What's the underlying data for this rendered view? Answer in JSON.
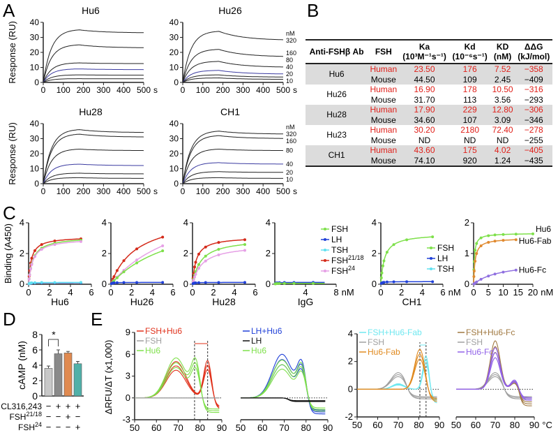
{
  "panel_labels": [
    "A",
    "B",
    "C",
    "D",
    "E"
  ],
  "chart_data": [
    {
      "type": "line",
      "panel": "A",
      "title": "Hu6",
      "ylabel": "Response (RU)",
      "xlabel": "s",
      "xlim": [
        0,
        500
      ],
      "ylim": [
        0,
        40
      ],
      "xticks": [
        0,
        100,
        200,
        300,
        400,
        500
      ],
      "yticks": [
        0,
        10,
        20,
        30,
        40
      ],
      "conc_unit": "nM",
      "concentrations": [
        "320",
        "160",
        "80",
        "40",
        "20",
        "10"
      ],
      "peak_values": [
        35,
        25,
        13,
        9,
        5,
        2.5
      ],
      "end_values": [
        33,
        23,
        12.5,
        8.5,
        4.8,
        2.4
      ]
    },
    {
      "type": "line",
      "panel": "A",
      "title": "Hu26",
      "xlabel": "s",
      "xlim": [
        0,
        500
      ],
      "ylim": [
        0,
        40
      ],
      "xticks": [
        0,
        100,
        200,
        300,
        400,
        500
      ],
      "yticks": [
        0,
        10,
        20,
        30,
        40
      ],
      "conc_unit": "nM",
      "concentrations": [
        "320",
        "160",
        "80",
        "40",
        "20",
        "10"
      ],
      "peak_values": [
        34,
        22,
        14,
        8,
        5,
        3
      ],
      "end_values": [
        28,
        17,
        10,
        5.5,
        3.5,
        2
      ]
    },
    {
      "type": "line",
      "panel": "A",
      "title": "Hu28",
      "ylabel": "Response (RU)",
      "xlabel": "s",
      "xlim": [
        0,
        500
      ],
      "ylim": [
        0,
        40
      ],
      "xticks": [
        0,
        100,
        200,
        300,
        400,
        500
      ],
      "yticks": [
        0,
        10,
        20,
        30,
        40
      ],
      "conc_unit": "nM",
      "concentrations": [
        "320",
        "160",
        "80",
        "40",
        "20",
        "10"
      ],
      "peak_values": [
        36,
        33,
        23,
        13,
        7,
        4
      ],
      "end_values": [
        34,
        31,
        22,
        12,
        6.5,
        3.5
      ]
    },
    {
      "type": "line",
      "panel": "A",
      "title": "CH1",
      "xlabel": "s",
      "xlim": [
        0,
        500
      ],
      "ylim": [
        0,
        40
      ],
      "xticks": [
        0,
        100,
        200,
        300,
        400,
        500
      ],
      "yticks": [
        0,
        10,
        20,
        30,
        40
      ],
      "conc_unit": "nM",
      "concentrations": [
        "320",
        "160",
        "80",
        "40",
        "20",
        "10"
      ],
      "peak_values": [
        35,
        32,
        23,
        14,
        8,
        4
      ],
      "end_values": [
        33,
        30,
        22,
        13,
        7.5,
        3.5
      ]
    },
    {
      "type": "table",
      "panel": "B",
      "headers": {
        "ab": "Anti-FSHβ Ab",
        "fsh": "FSH",
        "ka": "Ka",
        "ka_unit": "(10³M⁻¹s⁻¹)",
        "kd": "Kd",
        "kd_unit": "(10⁻⁶s⁻¹)",
        "KD": "KD",
        "KD_unit": "(nM)",
        "dg": "ΔΔG",
        "dg_unit": "(kJ/mol)"
      },
      "rows": [
        {
          "ab": "Hu6",
          "human": [
            "Human",
            "23.50",
            "176",
            "7.52",
            "−358"
          ],
          "mouse": [
            "Mouse",
            "44.50",
            "109",
            "2.45",
            "−409"
          ]
        },
        {
          "ab": "Hu26",
          "human": [
            "Human",
            "16.90",
            "178",
            "10.50",
            "−316"
          ],
          "mouse": [
            "Mouse",
            "31.70",
            "113",
            "3.56",
            "−293"
          ]
        },
        {
          "ab": "Hu28",
          "human": [
            "Human",
            "17.90",
            "229",
            "12.80",
            "−306"
          ],
          "mouse": [
            "Mouse",
            "34.60",
            "107",
            "3.09",
            "−346"
          ]
        },
        {
          "ab": "Hu23",
          "human": [
            "Human",
            "30.20",
            "2180",
            "72.40",
            "−278"
          ],
          "mouse": [
            "Mouse",
            "ND",
            "ND",
            "ND",
            "−255"
          ]
        },
        {
          "ab": "CH1",
          "human": [
            "Human",
            "43.60",
            "175",
            "4.02",
            "−405"
          ],
          "mouse": [
            "Mouse",
            "74.10",
            "920",
            "1.24",
            "−435"
          ]
        }
      ]
    },
    {
      "type": "line",
      "panel": "C",
      "xlabel": "Hu6",
      "ylabel": "Binding (A450)",
      "xlim": [
        0,
        6
      ],
      "ylim": [
        0,
        4
      ],
      "xticks": [
        0,
        2,
        4,
        6
      ],
      "yticks": [
        0,
        2,
        4
      ],
      "series": [
        {
          "name": "FSH21/18",
          "color": "#d42a1a",
          "bmax": 3.1,
          "kd": 0.25
        },
        {
          "name": "FSH",
          "color": "#7ee04a",
          "bmax": 3.1,
          "kd": 0.4
        },
        {
          "name": "FSH24",
          "color": "#e6a0e6",
          "bmax": 3.0,
          "kd": 0.4
        },
        {
          "name": "LH",
          "color": "#2040d8",
          "bmax": 0.1,
          "kd": 0.1
        },
        {
          "name": "TSH",
          "color": "#60e0f0",
          "bmax": 0.12,
          "kd": 0.1
        }
      ]
    },
    {
      "type": "line",
      "panel": "C",
      "xlabel": "Hu26",
      "xlim": [
        0,
        6
      ],
      "ylim": [
        0,
        4
      ],
      "xticks": [
        0,
        2,
        4,
        6
      ],
      "yticks": [
        0,
        2,
        4
      ],
      "series": [
        {
          "name": "FSH21/18",
          "color": "#d42a1a",
          "bmax": 4.6,
          "kd": 2.5
        },
        {
          "name": "FSH24",
          "color": "#e6a0e6",
          "bmax": 6,
          "kd": 7
        },
        {
          "name": "FSH",
          "color": "#7ee04a",
          "bmax": 5,
          "kd": 6.5
        },
        {
          "name": "LH",
          "color": "#2040d8",
          "bmax": 0.12,
          "kd": 0.1
        }
      ]
    },
    {
      "type": "line",
      "panel": "C",
      "xlabel": "Hu28",
      "xlim": [
        0,
        6
      ],
      "ylim": [
        0,
        4
      ],
      "xticks": [
        0,
        2,
        4,
        6
      ],
      "yticks": [
        0,
        2,
        4
      ],
      "series": [
        {
          "name": "FSH21/18",
          "color": "#d42a1a",
          "bmax": 3.1,
          "kd": 0.35
        },
        {
          "name": "FSH",
          "color": "#7ee04a",
          "bmax": 3.0,
          "kd": 0.8
        },
        {
          "name": "FSH24",
          "color": "#e6a0e6",
          "bmax": 2.6,
          "kd": 0.9
        },
        {
          "name": "LH",
          "color": "#2040d8",
          "bmax": 0.12,
          "kd": 0.1
        }
      ]
    },
    {
      "type": "line",
      "panel": "C",
      "xlabel": "IgG",
      "xunit": "nM",
      "xlim": [
        0,
        8
      ],
      "ylim": [
        0,
        4
      ],
      "xticks": [
        4,
        8
      ],
      "yticks": [
        0,
        2,
        4
      ],
      "series": [
        {
          "name": "LH",
          "color": "#2040d8",
          "bmax": 0.12,
          "kd": 0.1
        },
        {
          "name": "FSH",
          "color": "#7ee04a",
          "bmax": 0.06,
          "kd": 0.1
        }
      ],
      "legend": [
        "FSH",
        "LH",
        "TSH",
        "FSH21/18",
        "FSH24"
      ],
      "legend_colors": [
        "#7ee04a",
        "#2040d8",
        "#60e0f0",
        "#d42a1a",
        "#e6a0e6"
      ]
    },
    {
      "type": "line",
      "panel": "C",
      "xlabel": "CH1",
      "xunit": "nM",
      "xlim": [
        0,
        6
      ],
      "ylim": [
        0,
        4
      ],
      "xticks": [
        0,
        2,
        4,
        6
      ],
      "yticks": [
        0,
        2,
        4
      ],
      "series": [
        {
          "name": "FSH",
          "color": "#7ee04a",
          "bmax": 3.3,
          "kd": 0.35
        },
        {
          "name": "LH",
          "color": "#2040d8",
          "bmax": 0.17,
          "kd": 0.1
        }
      ],
      "legend": [
        "FSH",
        "LH",
        "TSH"
      ],
      "legend_colors": [
        "#7ee04a",
        "#2040d8",
        "#60e0f0"
      ]
    },
    {
      "type": "line",
      "panel": "C",
      "xunit": "nM",
      "xlim": [
        0,
        20
      ],
      "ylim": [
        0,
        2
      ],
      "xticks": [
        0,
        5,
        10,
        15,
        20
      ],
      "yticks": [
        0,
        1,
        2
      ],
      "series": [
        {
          "name": "Hu6",
          "color": "#7ee04a",
          "bmax": 1.66,
          "kd": 0.25
        },
        {
          "name": "Hu6-Fab",
          "color": "#e08a30",
          "bmax": 1.5,
          "kd": 0.5
        },
        {
          "name": "Hu6-Fc",
          "color": "#9070e0",
          "bmax": 0.75,
          "kd": 9
        }
      ]
    },
    {
      "type": "bar",
      "panel": "D",
      "ylabel": "cAMP (nM)",
      "ylim": [
        0,
        8
      ],
      "yticks": [
        0,
        2,
        4,
        6,
        8
      ],
      "values": [
        3.6,
        5.5,
        5.6,
        4.2
      ],
      "errors": [
        0.3,
        0.5,
        0.2,
        0.3
      ],
      "colors": [
        "#c8c8c8",
        "#8a8a8a",
        "#e08a50",
        "#50b0a8"
      ],
      "significance": "*",
      "conditions": [
        {
          "label": "CL316,243",
          "signs": [
            "−",
            "+",
            "+",
            "+"
          ]
        },
        {
          "label": "FSH21/18",
          "signs": [
            "−",
            "−",
            "+",
            "−"
          ]
        },
        {
          "label": "FSH24",
          "signs": [
            "−",
            "−",
            "−",
            "+"
          ]
        }
      ]
    },
    {
      "type": "line",
      "panel": "E",
      "ylabel": "ΔRFU/ΔT (x1,000)",
      "xlim": [
        50,
        90
      ],
      "ylim": [
        -3,
        9
      ],
      "xticks": [
        50,
        60,
        70,
        80,
        90
      ],
      "yticks": [
        -3,
        0,
        3,
        6,
        9
      ],
      "vlines": [
        77.5,
        83.5
      ],
      "legend": [
        "FSH+Hu6",
        "FSH",
        "Hu6"
      ],
      "legend_colors": [
        "#e0301a",
        "#a0a0a0",
        "#7ee04a"
      ],
      "series": [
        {
          "name": "FSH+Hu6",
          "color": "#e0301a",
          "peaks": [
            [
              69,
              5,
              4.5
            ],
            [
              83.5,
              5.2,
              1.8
            ]
          ],
          "tail": -1.5
        },
        {
          "name": "Hu6",
          "color": "#7ee04a",
          "peaks": [
            [
              69,
              5.5,
              4.5
            ],
            [
              78,
              4.8,
              2
            ]
          ],
          "tail": -2
        },
        {
          "name": "FSH",
          "color": "#a0a0a0",
          "peaks": [],
          "tail": 0
        }
      ]
    },
    {
      "type": "line",
      "panel": "E",
      "xlim": [
        50,
        90
      ],
      "ylim": [
        -3,
        9
      ],
      "xticks": [
        50,
        60,
        70,
        80,
        90
      ],
      "yticks": [],
      "legend": [
        "LH+Hu6",
        "LH",
        "Hu6"
      ],
      "legend_colors": [
        "#2040d8",
        "#111111",
        "#7ee04a"
      ],
      "series": [
        {
          "name": "LH+Hu6",
          "color": "#2040d8",
          "peaks": [
            [
              69,
              6,
              4.5
            ],
            [
              78,
              4.5,
              2
            ]
          ],
          "tail": -2.2
        },
        {
          "name": "Hu6",
          "color": "#7ee04a",
          "peaks": [
            [
              69,
              5.2,
              4.5
            ],
            [
              78,
              4.2,
              2
            ]
          ],
          "tail": -1.8
        },
        {
          "name": "LH",
          "color": "#111111",
          "peaks": [],
          "tail": -0.5
        }
      ]
    },
    {
      "type": "line",
      "panel": "E",
      "xlim": [
        50,
        90
      ],
      "ylim": [
        -2,
        4
      ],
      "xticks": [
        50,
        60,
        70,
        80,
        90
      ],
      "yticks": [
        -2,
        0,
        2,
        4
      ],
      "vlines": [
        80.5,
        83.5
      ],
      "legend": [
        "FSH+Hu6-Fab",
        "FSH",
        "Hu6-Fab"
      ],
      "legend_colors": [
        "#70e8f0",
        "#a0a0a0",
        "#e08a20"
      ],
      "series": [
        {
          "name": "FSH",
          "color": "#a0a0a0",
          "peaks": [
            [
              70,
              1.2,
              3.5
            ]
          ],
          "tail": -0.7
        },
        {
          "name": "FSH+Hu6-Fab",
          "color": "#70e8f0",
          "peaks": [
            [
              70,
              0.4,
              3
            ],
            [
              83.5,
              2.5,
              1.5
            ]
          ],
          "tail": -1
        },
        {
          "name": "Hu6-Fab",
          "color": "#e08a20",
          "peaks": [
            [
              80.5,
              2.9,
              2.5
            ]
          ],
          "tail": -0.9
        }
      ]
    },
    {
      "type": "line",
      "panel": "E",
      "xlim": [
        50,
        90
      ],
      "ylim": [
        -2,
        4
      ],
      "xticks": [
        50,
        60,
        70,
        80,
        90
      ],
      "yticks": [],
      "xunit": "°C",
      "legend": [
        "FSH+Hu6-Fc",
        "FSH",
        "Hu6-Fc"
      ],
      "legend_colors": [
        "#a07840",
        "#a0a0a0",
        "#9060e8"
      ],
      "series": [
        {
          "name": "FSH",
          "color": "#a0a0a0",
          "peaks": [
            [
              70,
              1.2,
              3.5
            ]
          ],
          "tail": -0.7
        },
        {
          "name": "FSH+Hu6-Fc",
          "color": "#a07840",
          "peaks": [
            [
              70,
              3.5,
              2.5
            ],
            [
              80,
              0.6,
              2
            ]
          ],
          "tail": -1.2
        },
        {
          "name": "Hu6-Fc",
          "color": "#9060e8",
          "peaks": [
            [
              70,
              3.0,
              2.5
            ],
            [
              80,
              0.7,
              2
            ]
          ],
          "tail": -0.8
        }
      ]
    }
  ]
}
